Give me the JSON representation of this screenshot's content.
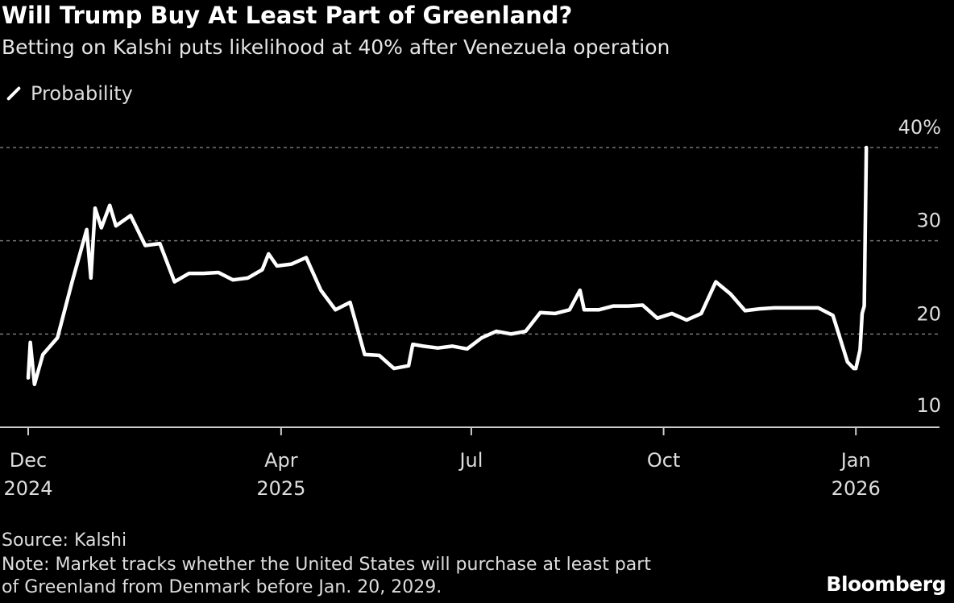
{
  "header": {
    "title": "Will Trump Buy At Least Part of Greenland?",
    "subtitle": "Betting on Kalshi puts likelihood at 40% after Venezuela operation"
  },
  "footer": {
    "source": "Source: Kalshi",
    "note_line1": "Note: Market tracks whether the United States will purchase at least part",
    "note_line2": "of Greenland from Denmark before Jan. 20, 2029.",
    "logo": "Bloomberg"
  },
  "chart_data": {
    "type": "line",
    "title": "Will Trump Buy At Least Part of Greenland?",
    "subtitle": "Betting on Kalshi puts likelihood at 40% after Venezuela operation",
    "legend": {
      "position": "top-left",
      "entries": [
        "Probability"
      ]
    },
    "ylim": [
      10,
      40
    ],
    "yticks": [
      {
        "value": 40,
        "label": "40%"
      },
      {
        "value": 30,
        "label": "30"
      },
      {
        "value": 20,
        "label": "20"
      },
      {
        "value": 10,
        "label": "10"
      }
    ],
    "xlim": [
      "2024-11-25",
      "2026-01-31"
    ],
    "xticks": [
      {
        "date": "2024-12-01",
        "line1": "Dec",
        "line2": "2024"
      },
      {
        "date": "2025-04-01",
        "line1": "Apr",
        "line2": "2025"
      },
      {
        "date": "2025-07-01",
        "line1": "Jul",
        "line2": ""
      },
      {
        "date": "2025-10-01",
        "line1": "Oct",
        "line2": ""
      },
      {
        "date": "2026-01-01",
        "line1": "Jan",
        "line2": "2026"
      }
    ],
    "grid": "horizontal dotted",
    "colors": {
      "background": "#000000",
      "line": "#ffffff",
      "grid": "#777777"
    },
    "series": [
      {
        "name": "Probability",
        "points": [
          [
            "2024-12-01",
            15.3
          ],
          [
            "2024-12-02",
            19.1
          ],
          [
            "2024-12-04",
            14.6
          ],
          [
            "2024-12-08",
            17.8
          ],
          [
            "2024-12-15",
            19.6
          ],
          [
            "2024-12-22",
            25.6
          ],
          [
            "2024-12-29",
            31.2
          ],
          [
            "2024-12-31",
            26.0
          ],
          [
            "2025-01-02",
            33.5
          ],
          [
            "2025-01-05",
            31.4
          ],
          [
            "2025-01-09",
            33.8
          ],
          [
            "2025-01-12",
            31.6
          ],
          [
            "2025-01-19",
            32.7
          ],
          [
            "2025-01-26",
            29.5
          ],
          [
            "2025-02-02",
            29.7
          ],
          [
            "2025-02-09",
            25.6
          ],
          [
            "2025-02-16",
            26.5
          ],
          [
            "2025-02-23",
            26.5
          ],
          [
            "2025-03-02",
            26.6
          ],
          [
            "2025-03-09",
            25.8
          ],
          [
            "2025-03-16",
            26.0
          ],
          [
            "2025-03-23",
            26.9
          ],
          [
            "2025-03-26",
            28.6
          ],
          [
            "2025-03-30",
            27.3
          ],
          [
            "2025-04-06",
            27.5
          ],
          [
            "2025-04-13",
            28.2
          ],
          [
            "2025-04-20",
            24.7
          ],
          [
            "2025-04-27",
            22.6
          ],
          [
            "2025-05-04",
            23.4
          ],
          [
            "2025-05-11",
            17.8
          ],
          [
            "2025-05-18",
            17.7
          ],
          [
            "2025-05-25",
            16.3
          ],
          [
            "2025-06-01",
            16.6
          ],
          [
            "2025-06-03",
            18.9
          ],
          [
            "2025-06-08",
            18.7
          ],
          [
            "2025-06-15",
            18.5
          ],
          [
            "2025-06-22",
            18.7
          ],
          [
            "2025-06-29",
            18.4
          ],
          [
            "2025-07-06",
            19.6
          ],
          [
            "2025-07-13",
            20.3
          ],
          [
            "2025-07-20",
            20.0
          ],
          [
            "2025-07-27",
            20.3
          ],
          [
            "2025-08-03",
            22.3
          ],
          [
            "2025-08-10",
            22.2
          ],
          [
            "2025-08-17",
            22.6
          ],
          [
            "2025-08-22",
            24.7
          ],
          [
            "2025-08-24",
            22.6
          ],
          [
            "2025-08-31",
            22.6
          ],
          [
            "2025-09-07",
            23.0
          ],
          [
            "2025-09-14",
            23.0
          ],
          [
            "2025-09-21",
            23.1
          ],
          [
            "2025-09-28",
            21.7
          ],
          [
            "2025-10-05",
            22.2
          ],
          [
            "2025-10-12",
            21.5
          ],
          [
            "2025-10-19",
            22.2
          ],
          [
            "2025-10-26",
            25.6
          ],
          [
            "2025-11-02",
            24.3
          ],
          [
            "2025-11-09",
            22.5
          ],
          [
            "2025-11-16",
            22.7
          ],
          [
            "2025-11-23",
            22.8
          ],
          [
            "2025-11-30",
            22.8
          ],
          [
            "2025-12-07",
            22.8
          ],
          [
            "2025-12-14",
            22.8
          ],
          [
            "2025-12-21",
            22.0
          ],
          [
            "2025-12-28",
            17.0
          ],
          [
            "2025-12-31",
            16.3
          ],
          [
            "2026-01-01",
            16.3
          ],
          [
            "2026-01-03",
            18.3
          ],
          [
            "2026-01-04",
            22.2
          ],
          [
            "2026-01-05",
            23.0
          ],
          [
            "2026-01-06",
            40.0
          ]
        ]
      }
    ]
  }
}
